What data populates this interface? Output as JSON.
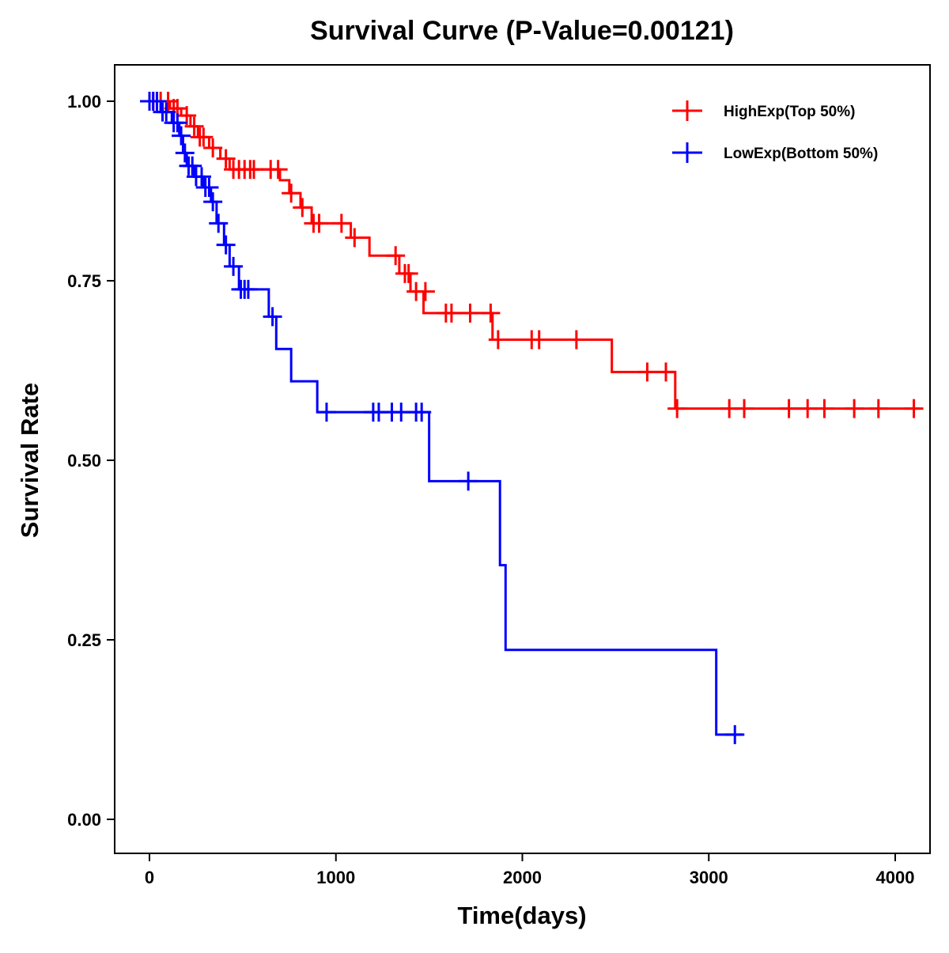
{
  "chart_data": {
    "type": "line",
    "subtype": "kaplan-meier step",
    "title": "Survival Curve (P-Value=0.00121)",
    "xlabel": "Time(days)",
    "ylabel": "Survival Rate",
    "xlim": [
      -190,
      4180
    ],
    "ylim": [
      -0.05,
      1.05
    ],
    "x_ticks": [
      0,
      1000,
      2000,
      3000,
      4000
    ],
    "x_tick_labels": [
      "0",
      "1000",
      "2000",
      "3000",
      "4000"
    ],
    "y_ticks": [
      0.0,
      0.25,
      0.5,
      0.75,
      1.0
    ],
    "y_tick_labels": [
      "0.00",
      "0.25",
      "0.50",
      "0.75",
      "1.00"
    ],
    "grid": false,
    "legend_position": "top-right",
    "series": [
      {
        "name": "HighExp(Top 50%)",
        "color": "#ff0000",
        "steps": [
          [
            0,
            1.0
          ],
          [
            110,
            0.99
          ],
          [
            170,
            0.98
          ],
          [
            220,
            0.965
          ],
          [
            260,
            0.95
          ],
          [
            320,
            0.935
          ],
          [
            380,
            0.92
          ],
          [
            430,
            0.905
          ],
          [
            700,
            0.89
          ],
          [
            750,
            0.872
          ],
          [
            810,
            0.852
          ],
          [
            870,
            0.83
          ],
          [
            1080,
            0.81
          ],
          [
            1180,
            0.785
          ],
          [
            1340,
            0.76
          ],
          [
            1400,
            0.735
          ],
          [
            1470,
            0.705
          ],
          [
            1840,
            0.668
          ],
          [
            2480,
            0.623
          ],
          [
            2820,
            0.572
          ]
        ],
        "end_time": 4130,
        "censored": [
          [
            20,
            1.0
          ],
          [
            60,
            1.0
          ],
          [
            100,
            1.0
          ],
          [
            130,
            0.99
          ],
          [
            150,
            0.99
          ],
          [
            200,
            0.98
          ],
          [
            240,
            0.965
          ],
          [
            270,
            0.95
          ],
          [
            290,
            0.95
          ],
          [
            340,
            0.935
          ],
          [
            410,
            0.92
          ],
          [
            450,
            0.905
          ],
          [
            480,
            0.905
          ],
          [
            510,
            0.905
          ],
          [
            540,
            0.905
          ],
          [
            560,
            0.905
          ],
          [
            650,
            0.905
          ],
          [
            690,
            0.905
          ],
          [
            760,
            0.872
          ],
          [
            820,
            0.852
          ],
          [
            880,
            0.83
          ],
          [
            910,
            0.83
          ],
          [
            1030,
            0.83
          ],
          [
            1100,
            0.81
          ],
          [
            1320,
            0.785
          ],
          [
            1370,
            0.76
          ],
          [
            1390,
            0.76
          ],
          [
            1430,
            0.735
          ],
          [
            1480,
            0.735
          ],
          [
            1590,
            0.705
          ],
          [
            1620,
            0.705
          ],
          [
            1720,
            0.705
          ],
          [
            1830,
            0.705
          ],
          [
            1870,
            0.668
          ],
          [
            2050,
            0.668
          ],
          [
            2090,
            0.668
          ],
          [
            2290,
            0.668
          ],
          [
            2670,
            0.623
          ],
          [
            2770,
            0.623
          ],
          [
            2830,
            0.572
          ],
          [
            3110,
            0.572
          ],
          [
            3190,
            0.572
          ],
          [
            3430,
            0.572
          ],
          [
            3530,
            0.572
          ],
          [
            3620,
            0.572
          ],
          [
            3780,
            0.572
          ],
          [
            3910,
            0.572
          ],
          [
            4100,
            0.572
          ]
        ]
      },
      {
        "name": "LowExp(Bottom 50%)",
        "color": "#0000ff",
        "steps": [
          [
            0,
            1.0
          ],
          [
            60,
            0.985
          ],
          [
            120,
            0.97
          ],
          [
            160,
            0.952
          ],
          [
            180,
            0.928
          ],
          [
            200,
            0.91
          ],
          [
            240,
            0.895
          ],
          [
            290,
            0.88
          ],
          [
            330,
            0.86
          ],
          [
            360,
            0.83
          ],
          [
            400,
            0.8
          ],
          [
            430,
            0.77
          ],
          [
            480,
            0.738
          ],
          [
            640,
            0.7
          ],
          [
            680,
            0.655
          ],
          [
            760,
            0.61
          ],
          [
            900,
            0.567
          ],
          [
            1500,
            0.471
          ],
          [
            1880,
            0.354
          ],
          [
            1910,
            0.236
          ],
          [
            3040,
            0.118
          ]
        ],
        "end_time": 3180,
        "censored": [
          [
            0,
            1.0
          ],
          [
            20,
            1.0
          ],
          [
            40,
            1.0
          ],
          [
            70,
            0.985
          ],
          [
            90,
            0.985
          ],
          [
            130,
            0.97
          ],
          [
            150,
            0.97
          ],
          [
            170,
            0.952
          ],
          [
            190,
            0.928
          ],
          [
            210,
            0.91
          ],
          [
            230,
            0.91
          ],
          [
            250,
            0.895
          ],
          [
            280,
            0.895
          ],
          [
            300,
            0.88
          ],
          [
            320,
            0.88
          ],
          [
            340,
            0.86
          ],
          [
            370,
            0.83
          ],
          [
            410,
            0.8
          ],
          [
            450,
            0.77
          ],
          [
            490,
            0.738
          ],
          [
            510,
            0.738
          ],
          [
            530,
            0.738
          ],
          [
            660,
            0.7
          ],
          [
            950,
            0.567
          ],
          [
            1200,
            0.567
          ],
          [
            1230,
            0.567
          ],
          [
            1300,
            0.567
          ],
          [
            1350,
            0.567
          ],
          [
            1430,
            0.567
          ],
          [
            1460,
            0.567
          ],
          [
            1710,
            0.471
          ],
          [
            3140,
            0.118
          ]
        ]
      }
    ]
  }
}
